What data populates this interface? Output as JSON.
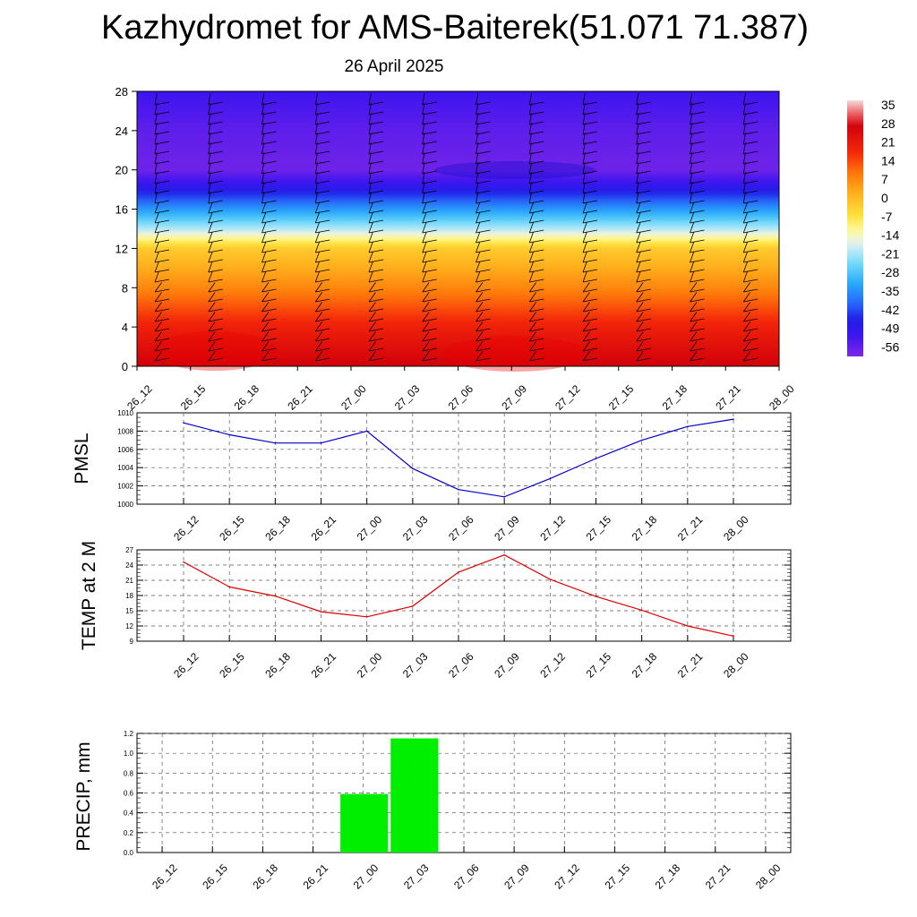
{
  "title": "Kazhydromet for AMS-Baiterek(51.071 71.387)",
  "subtitle": "26 April 2025",
  "colors": {
    "pmsl_line": "#0000cc",
    "temp_line": "#dd0000",
    "precip_bar": "#00ee00"
  },
  "chart_data": [
    {
      "type": "heatmap",
      "x": [
        "26_12",
        "26_15",
        "26_18",
        "26_21",
        "27_00",
        "27_03",
        "27_06",
        "27_09",
        "27_12",
        "27_15",
        "27_18",
        "27_21",
        "28_00"
      ],
      "ylim": [
        0,
        28
      ],
      "yticks": [
        0,
        4,
        8,
        12,
        16,
        20,
        24,
        28
      ],
      "colorbar": {
        "labels": [
          "35",
          "28",
          "21",
          "14",
          "7",
          "0",
          "-7",
          "-14",
          "-21",
          "-28",
          "-35",
          "-42",
          "-49",
          "-56"
        ],
        "range": [
          -60,
          38
        ]
      },
      "profile": {
        "note_levels": [
          0,
          4,
          8,
          12,
          14,
          16,
          18,
          20,
          24,
          28
        ],
        "temperature": [
          28,
          20,
          8,
          -2,
          -20,
          -34,
          -48,
          -58,
          -56,
          -52
        ]
      }
    },
    {
      "type": "line",
      "ylabel": "PMSL",
      "x": [
        "26_12",
        "26_15",
        "26_18",
        "26_21",
        "27_00",
        "27_03",
        "27_06",
        "27_09",
        "27_12",
        "27_15",
        "27_18",
        "27_21",
        "28_00"
      ],
      "values": [
        1008.9,
        1007.6,
        1006.7,
        1006.7,
        1008.0,
        1003.9,
        1001.6,
        1000.8,
        1002.8,
        1005.0,
        1007.0,
        1008.5,
        1009.3
      ],
      "ylim": [
        1000,
        1010
      ],
      "yticks": [
        1000,
        1002,
        1004,
        1006,
        1008,
        1010
      ]
    },
    {
      "type": "line",
      "ylabel": "TEMP at 2 M",
      "x": [
        "26_12",
        "26_15",
        "26_18",
        "26_21",
        "27_00",
        "27_03",
        "27_06",
        "27_09",
        "27_12",
        "27_15",
        "27_18",
        "27_21",
        "28_00"
      ],
      "values": [
        24.6,
        19.7,
        17.9,
        14.8,
        13.8,
        15.9,
        22.6,
        26.0,
        21.2,
        17.8,
        15.1,
        12.0,
        10.0
      ],
      "ylim": [
        9,
        27
      ],
      "yticks": [
        9,
        12,
        15,
        18,
        21,
        24,
        27
      ]
    },
    {
      "type": "bar",
      "ylabel": "PRECIP, mm",
      "x": [
        "26_12",
        "26_15",
        "26_18",
        "26_21",
        "27_00",
        "27_03",
        "27_06",
        "27_09",
        "27_12",
        "27_15",
        "27_18",
        "27_21",
        "28_00"
      ],
      "values": [
        0,
        0,
        0,
        0,
        0.59,
        1.15,
        0,
        0,
        0,
        0,
        0,
        0,
        0
      ],
      "ylim": [
        0,
        1.2
      ],
      "yticks": [
        "0.0",
        "0.2",
        "0.4",
        "0.6",
        "0.8",
        "1.0",
        "1.2"
      ]
    }
  ]
}
